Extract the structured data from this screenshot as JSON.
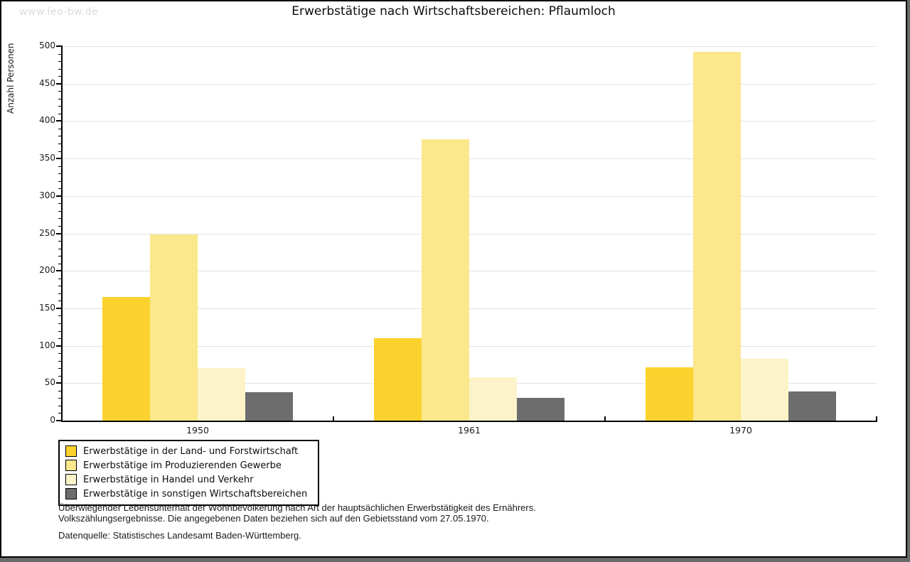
{
  "watermark": "www.leo-bw.de",
  "chart_data": {
    "type": "bar",
    "title": "Erwerbstätige nach Wirtschaftsbereichen: Pflaumloch",
    "ylabel": "Anzahl Personen",
    "categories": [
      "1950",
      "1961",
      "1970"
    ],
    "series": [
      {
        "name": "Erwerbstätige in der Land- und Forstwirtschaft",
        "color": "#FCD22F",
        "values": [
          165,
          110,
          71
        ]
      },
      {
        "name": "Erwerbstätige im Produzierenden Gewerbe",
        "color": "#FBE78C",
        "values": [
          249,
          376,
          492
        ]
      },
      {
        "name": "Erwerbstätige in Handel und Verkehr",
        "color": "#FCF3C9",
        "values": [
          70,
          58,
          83
        ]
      },
      {
        "name": "Erwerbstätige in sonstigen Wirtschaftsbereichen",
        "color": "#6D6D6D",
        "values": [
          38,
          30,
          39
        ]
      }
    ],
    "ylim": [
      0,
      500
    ],
    "ytick_step": 50,
    "yminor_step": 10,
    "grid": "horizontal",
    "legend_position": "bottom-left"
  },
  "footnotes": {
    "line1": "Überwiegender Lebensunterhalt der Wohnbevölkerung nach Art der hauptsächlichen Erwerbstätigkeit des Ernährers.",
    "line2": "Volkszählungsergebnisse. Die angegebenen Daten beziehen sich auf den Gebietsstand vom 27.05.1970.",
    "source": "Datenquelle: Statistisches Landesamt Baden-Württemberg."
  },
  "colors": {
    "gridline": "#E3E3E3",
    "axis": "#000000",
    "watermark": "#DADADA",
    "frame_shadow": "#696969",
    "background": "#FFFFFF"
  }
}
